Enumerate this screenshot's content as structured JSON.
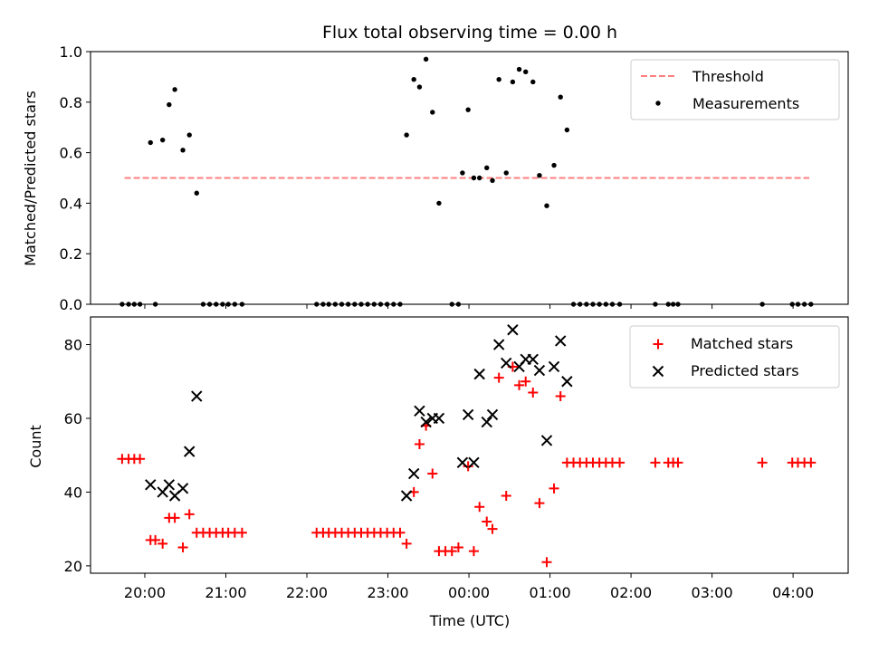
{
  "title": "Flux total observing time = 0.00 h",
  "colors": {
    "threshold": "#ff7f7f",
    "measurement": "#000000",
    "matched": "#ff0000",
    "predicted": "#000000"
  },
  "chart_data": [
    {
      "type": "scatter",
      "ylabel": "Matched/Predicted stars",
      "ylim": [
        0,
        1.0
      ],
      "yticks": [
        "0.0",
        "0.2",
        "0.4",
        "0.6",
        "0.8",
        "1.0"
      ],
      "legend": {
        "placement": "top-right",
        "entries": [
          "Threshold",
          "Measurements"
        ]
      },
      "threshold": {
        "name": "Threshold",
        "value": 0.5,
        "x_start": 19.75,
        "x_end": 28.2
      },
      "series": [
        {
          "name": "Measurements",
          "points": [
            [
              19.72,
              0
            ],
            [
              19.8,
              0
            ],
            [
              19.87,
              0
            ],
            [
              19.94,
              0
            ],
            [
              20.13,
              0
            ],
            [
              20.07,
              0.64
            ],
            [
              20.22,
              0.65
            ],
            [
              20.3,
              0.79
            ],
            [
              20.37,
              0.85
            ],
            [
              20.47,
              0.61
            ],
            [
              20.55,
              0.67
            ],
            [
              20.64,
              0.44
            ],
            [
              20.72,
              0
            ],
            [
              20.8,
              0
            ],
            [
              20.88,
              0
            ],
            [
              20.96,
              0
            ],
            [
              21.03,
              0
            ],
            [
              21.11,
              0
            ],
            [
              21.2,
              0
            ],
            [
              22.12,
              0
            ],
            [
              22.2,
              0
            ],
            [
              22.27,
              0
            ],
            [
              22.35,
              0
            ],
            [
              22.43,
              0
            ],
            [
              22.51,
              0
            ],
            [
              22.59,
              0
            ],
            [
              22.67,
              0
            ],
            [
              22.75,
              0
            ],
            [
              22.83,
              0
            ],
            [
              22.91,
              0
            ],
            [
              22.99,
              0
            ],
            [
              23.07,
              0
            ],
            [
              23.15,
              0
            ],
            [
              23.23,
              0.67
            ],
            [
              23.32,
              0.89
            ],
            [
              23.39,
              0.86
            ],
            [
              23.47,
              0.97
            ],
            [
              23.55,
              0.76
            ],
            [
              23.63,
              0.4
            ],
            [
              23.79,
              0
            ],
            [
              23.87,
              0
            ],
            [
              23.92,
              0.52
            ],
            [
              23.99,
              0.77
            ],
            [
              24.06,
              0.5
            ],
            [
              24.13,
              0.5
            ],
            [
              24.22,
              0.54
            ],
            [
              24.29,
              0.49
            ],
            [
              24.37,
              0.89
            ],
            [
              24.46,
              0.52
            ],
            [
              24.54,
              0.88
            ],
            [
              24.62,
              0.93
            ],
            [
              24.7,
              0.92
            ],
            [
              24.79,
              0.88
            ],
            [
              24.87,
              0.51
            ],
            [
              24.96,
              0.39
            ],
            [
              25.05,
              0.55
            ],
            [
              25.13,
              0.82
            ],
            [
              25.21,
              0.69
            ],
            [
              25.29,
              0
            ],
            [
              25.37,
              0
            ],
            [
              25.45,
              0
            ],
            [
              25.53,
              0
            ],
            [
              25.61,
              0
            ],
            [
              25.69,
              0
            ],
            [
              25.77,
              0
            ],
            [
              25.86,
              0
            ],
            [
              26.3,
              0
            ],
            [
              26.46,
              0
            ],
            [
              26.52,
              0
            ],
            [
              26.58,
              0
            ],
            [
              27.62,
              0
            ],
            [
              27.99,
              0
            ],
            [
              28.06,
              0
            ],
            [
              28.14,
              0
            ],
            [
              28.22,
              0
            ]
          ]
        }
      ]
    },
    {
      "type": "scatter",
      "xlabel": "Time (UTC)",
      "ylabel": "Count",
      "ylim": [
        18,
        87.5
      ],
      "yticks": [
        "20",
        "40",
        "60",
        "80"
      ],
      "xticks": [
        "20:00",
        "21:00",
        "22:00",
        "23:00",
        "00:00",
        "01:00",
        "02:00",
        "03:00",
        "04:00"
      ],
      "xlim": [
        19.33,
        28.68
      ],
      "legend": {
        "placement": "top-right",
        "entries": [
          "Matched stars",
          "Predicted stars"
        ]
      },
      "series": [
        {
          "name": "Matched stars",
          "marker": "plus",
          "points": [
            [
              19.72,
              49
            ],
            [
              19.8,
              49
            ],
            [
              19.87,
              49
            ],
            [
              19.94,
              49
            ],
            [
              20.07,
              27
            ],
            [
              20.13,
              27
            ],
            [
              20.22,
              26
            ],
            [
              20.3,
              33
            ],
            [
              20.37,
              33
            ],
            [
              20.47,
              25
            ],
            [
              20.55,
              34
            ],
            [
              20.64,
              29
            ],
            [
              20.72,
              29
            ],
            [
              20.8,
              29
            ],
            [
              20.88,
              29
            ],
            [
              20.96,
              29
            ],
            [
              21.03,
              29
            ],
            [
              21.11,
              29
            ],
            [
              21.2,
              29
            ],
            [
              22.12,
              29
            ],
            [
              22.2,
              29
            ],
            [
              22.27,
              29
            ],
            [
              22.35,
              29
            ],
            [
              22.43,
              29
            ],
            [
              22.51,
              29
            ],
            [
              22.59,
              29
            ],
            [
              22.67,
              29
            ],
            [
              22.75,
              29
            ],
            [
              22.83,
              29
            ],
            [
              22.91,
              29
            ],
            [
              22.99,
              29
            ],
            [
              23.07,
              29
            ],
            [
              23.15,
              29
            ],
            [
              23.23,
              26
            ],
            [
              23.32,
              40
            ],
            [
              23.39,
              53
            ],
            [
              23.47,
              58
            ],
            [
              23.55,
              45
            ],
            [
              23.63,
              24
            ],
            [
              23.71,
              24
            ],
            [
              23.79,
              24
            ],
            [
              23.87,
              25
            ],
            [
              23.99,
              47
            ],
            [
              24.06,
              24
            ],
            [
              24.13,
              36
            ],
            [
              24.22,
              32
            ],
            [
              24.29,
              30
            ],
            [
              24.37,
              71
            ],
            [
              24.46,
              39
            ],
            [
              24.54,
              74
            ],
            [
              24.62,
              69
            ],
            [
              24.7,
              70
            ],
            [
              24.79,
              67
            ],
            [
              24.87,
              37
            ],
            [
              24.96,
              21
            ],
            [
              25.05,
              41
            ],
            [
              25.13,
              66
            ],
            [
              25.21,
              48
            ],
            [
              25.29,
              48
            ],
            [
              25.37,
              48
            ],
            [
              25.45,
              48
            ],
            [
              25.53,
              48
            ],
            [
              25.61,
              48
            ],
            [
              25.69,
              48
            ],
            [
              25.77,
              48
            ],
            [
              25.86,
              48
            ],
            [
              26.3,
              48
            ],
            [
              26.46,
              48
            ],
            [
              26.52,
              48
            ],
            [
              26.58,
              48
            ],
            [
              27.62,
              48
            ],
            [
              27.99,
              48
            ],
            [
              28.06,
              48
            ],
            [
              28.14,
              48
            ],
            [
              28.22,
              48
            ]
          ]
        },
        {
          "name": "Predicted stars",
          "marker": "x",
          "points": [
            [
              20.07,
              42
            ],
            [
              20.22,
              40
            ],
            [
              20.3,
              42
            ],
            [
              20.37,
              39
            ],
            [
              20.47,
              41
            ],
            [
              20.55,
              51
            ],
            [
              20.64,
              66
            ],
            [
              23.23,
              39
            ],
            [
              23.32,
              45
            ],
            [
              23.39,
              62
            ],
            [
              23.47,
              59
            ],
            [
              23.55,
              60
            ],
            [
              23.63,
              60
            ],
            [
              23.92,
              48
            ],
            [
              23.99,
              61
            ],
            [
              24.06,
              48
            ],
            [
              24.13,
              72
            ],
            [
              24.22,
              59
            ],
            [
              24.29,
              61
            ],
            [
              24.37,
              80
            ],
            [
              24.46,
              75
            ],
            [
              24.54,
              84
            ],
            [
              24.62,
              74
            ],
            [
              24.7,
              76
            ],
            [
              24.79,
              76
            ],
            [
              24.87,
              73
            ],
            [
              24.96,
              54
            ],
            [
              25.05,
              74
            ],
            [
              25.13,
              81
            ],
            [
              25.21,
              70
            ]
          ]
        }
      ]
    }
  ]
}
